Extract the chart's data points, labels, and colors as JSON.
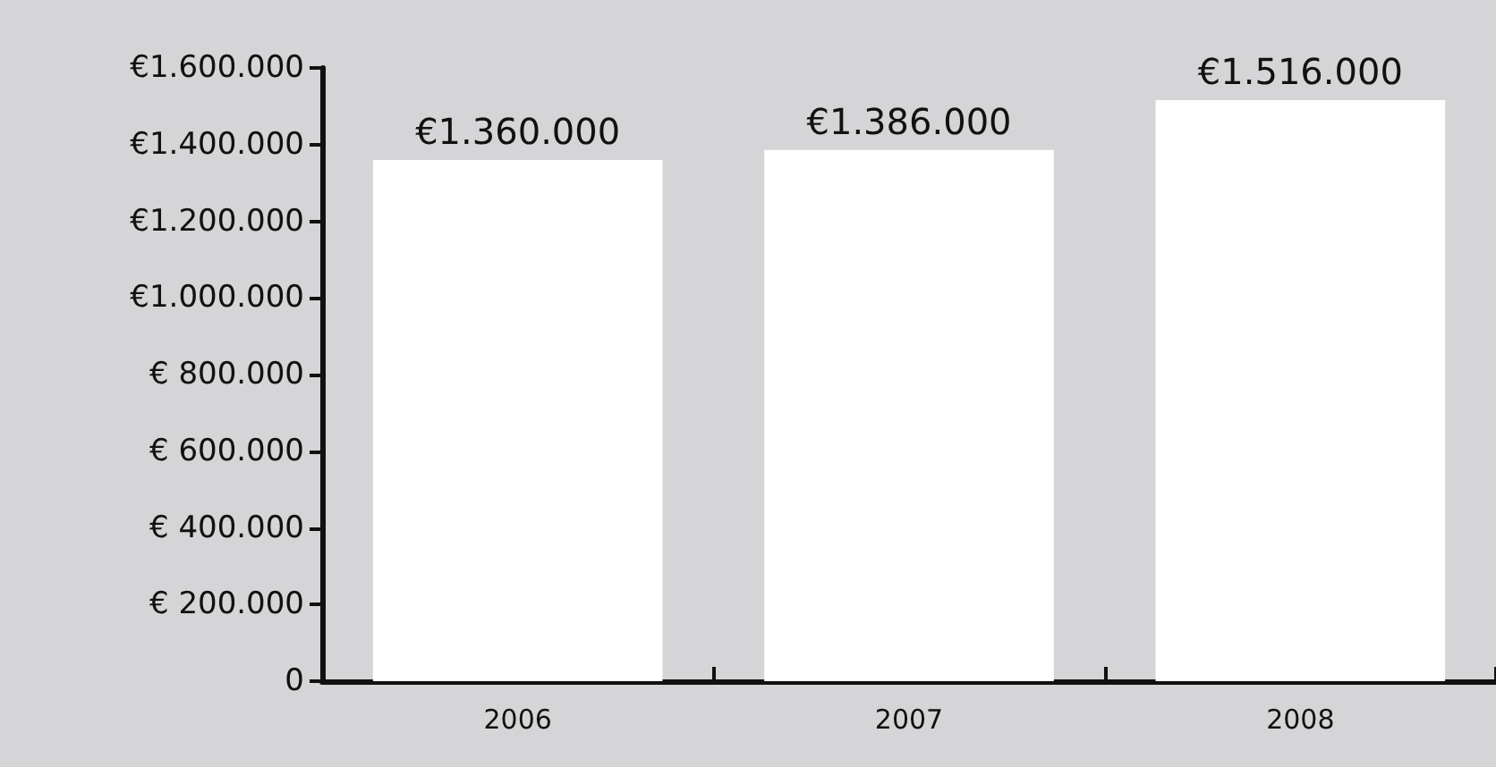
{
  "chart_data": {
    "type": "bar",
    "categories": [
      "2006",
      "2007",
      "2008"
    ],
    "values": [
      1360000,
      1386000,
      1516000
    ],
    "value_labels": [
      "€1.360.000",
      "€1.386.000",
      "€1.516.000"
    ],
    "color": "#ffffff",
    "ylim": [
      0,
      1600000
    ],
    "yticks": [
      0,
      {
        "value": 200000,
        "label": "€ 200.000"
      },
      {
        "value": 400000,
        "label": "€ 400.000"
      },
      {
        "value": 600000,
        "label": "€ 600.000"
      },
      {
        "value": 800000,
        "label": "€ 800.000"
      },
      {
        "value": 1000000,
        "label": "€1.000.000"
      },
      {
        "value": 1200000,
        "label": "€1.200.000"
      },
      {
        "value": 1400000,
        "label": "€1.400.000"
      },
      {
        "value": 1600000,
        "label": "€1.600.000"
      }
    ]
  }
}
